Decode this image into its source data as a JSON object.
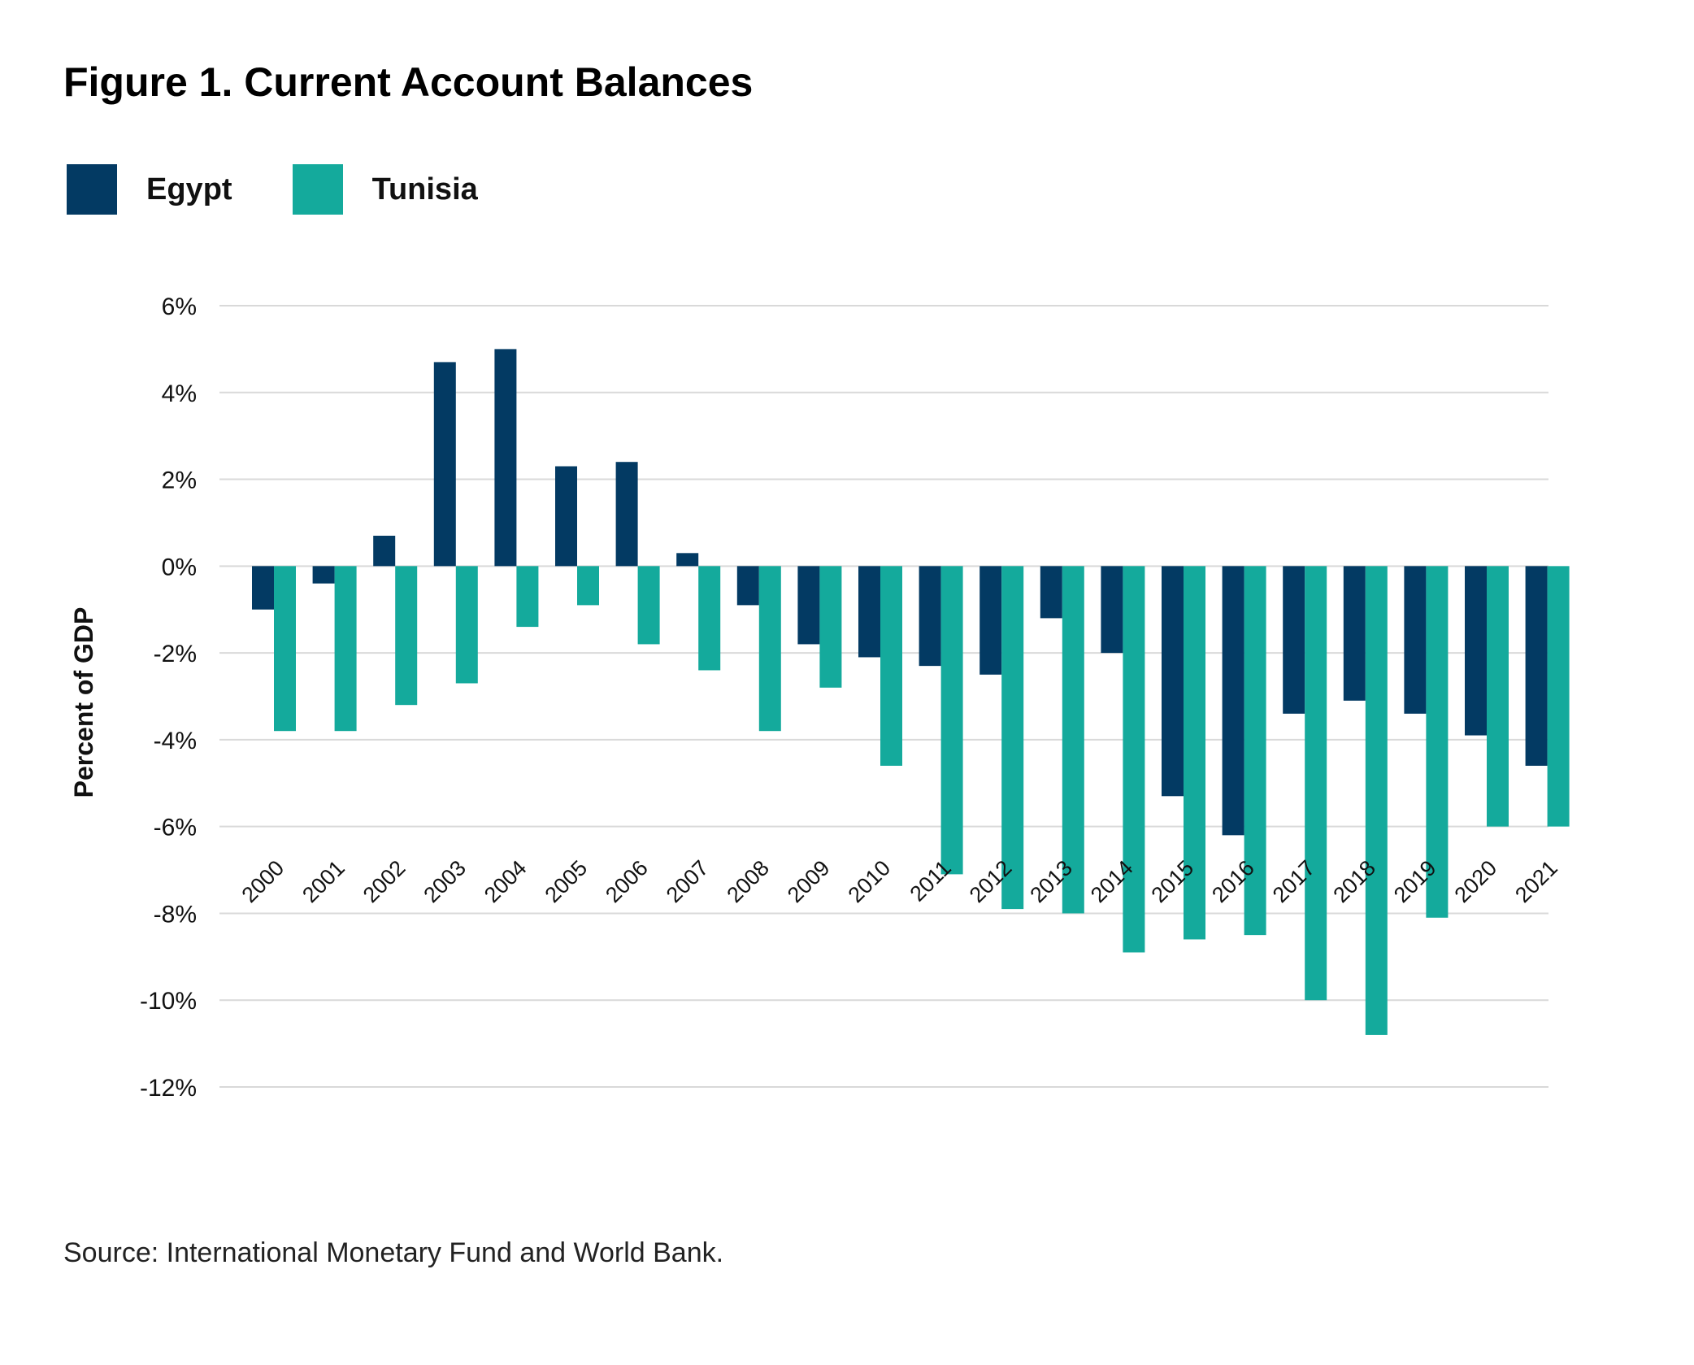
{
  "title": "Figure 1. Current Account Balances",
  "source": "Source: International Monetary Fund and World Bank.",
  "colors": {
    "egypt": "#033a63",
    "tunisia": "#14aa9c",
    "grid": "#d9d9d9"
  },
  "legend": [
    {
      "name": "Egypt",
      "color": "#033a63"
    },
    {
      "name": "Tunisia",
      "color": "#14aa9c"
    }
  ],
  "chart_data": {
    "type": "bar",
    "title": "Figure 1. Current Account Balances",
    "xlabel": "",
    "ylabel": "Percent of GDP",
    "ylim": [
      -12,
      6
    ],
    "yticks": [
      "6%",
      "4%",
      "2%",
      "0%",
      "-2%",
      "-4%",
      "-6%",
      "-8%",
      "-10%",
      "-12%"
    ],
    "ytick_values": [
      6,
      4,
      2,
      0,
      -2,
      -4,
      -6,
      -8,
      -10,
      -12
    ],
    "grid": true,
    "legend_position": "top-left",
    "categories": [
      "2000",
      "2001",
      "2002",
      "2003",
      "2004",
      "2005",
      "2006",
      "2007",
      "2008",
      "2009",
      "2010",
      "2011",
      "2012",
      "2013",
      "2014",
      "2015",
      "2016",
      "2017",
      "2018",
      "2019",
      "2020",
      "2021"
    ],
    "series": [
      {
        "name": "Egypt",
        "color": "#033a63",
        "values": [
          -1.0,
          -0.4,
          0.7,
          4.7,
          5.0,
          2.3,
          2.4,
          0.3,
          -0.9,
          -1.8,
          -2.1,
          -2.3,
          -2.5,
          -1.2,
          -2.0,
          -5.3,
          -6.2,
          -3.4,
          -3.1,
          -3.4,
          -3.9,
          -4.6
        ]
      },
      {
        "name": "Tunisia",
        "color": "#14aa9c",
        "values": [
          -3.8,
          -3.8,
          -3.2,
          -2.7,
          -1.4,
          -0.9,
          -1.8,
          -2.4,
          -3.8,
          -2.8,
          -4.6,
          -7.1,
          -7.9,
          -8.0,
          -8.9,
          -8.6,
          -8.5,
          -10.0,
          -10.8,
          -8.1,
          -6.0,
          -6.0
        ]
      }
    ]
  }
}
